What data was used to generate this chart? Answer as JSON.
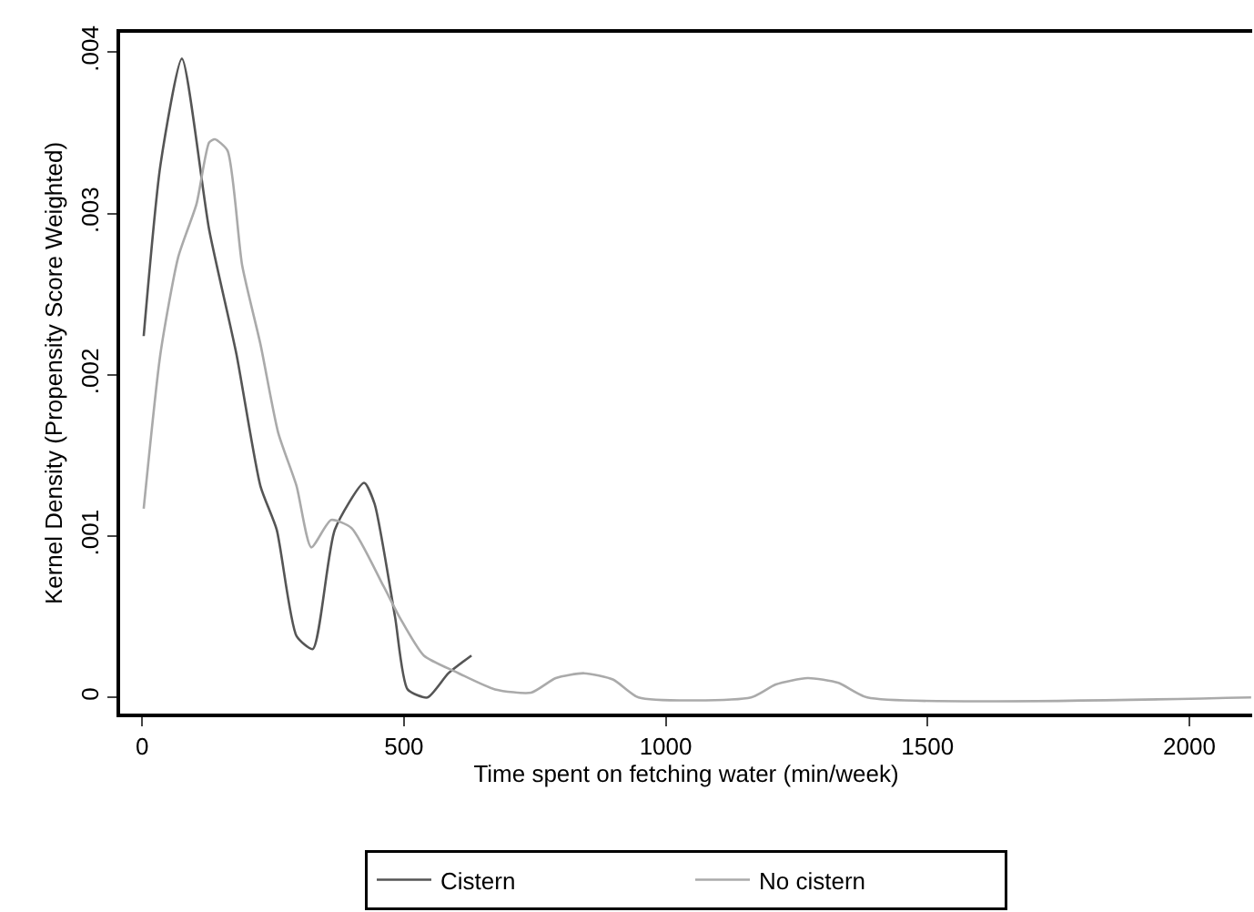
{
  "chart_data": {
    "type": "line",
    "xlabel": "Time spent on fetching water (min/week)",
    "ylabel": "Kernel Density (Propensity Score Weighted)",
    "xlim": [
      -42,
      2120
    ],
    "ylim": [
      -0.0001,
      0.00412
    ],
    "xticks": [
      0,
      500,
      1000,
      1500,
      2000
    ],
    "yticks": [
      0,
      {
        "value": 0.001,
        "label": ".001"
      },
      {
        "value": 0.002,
        "label": ".002"
      },
      {
        "value": 0.003,
        "label": ".003"
      },
      {
        "value": 0.004,
        "label": ".004"
      }
    ],
    "grid": false,
    "legend": "bottom",
    "marker": "none",
    "line_style": "solid",
    "series": [
      {
        "name": "Cistern",
        "color": "#555555",
        "x": [
          3,
          35,
          76,
          128,
          180,
          226,
          257,
          295,
          326,
          368,
          424,
          444,
          483,
          507,
          545,
          585,
          629
        ],
        "values": [
          0.00224,
          0.0033,
          0.00396,
          0.0029,
          0.00213,
          0.00131,
          0.00104,
          0.00038,
          0.0003,
          0.00104,
          0.00133,
          0.0012,
          0.0005,
          5e-05,
          0,
          0.00015,
          0.00026
        ]
      },
      {
        "name": "No cistern",
        "color": "#aaaaaa",
        "x": [
          3,
          35,
          69,
          104,
          128,
          139,
          163,
          191,
          226,
          260,
          295,
          323,
          361,
          400,
          461,
          493,
          538,
          598,
          674,
          743,
          790,
          844,
          900,
          948,
          1163,
          1210,
          1271,
          1330,
          1385,
          2118
        ],
        "values": [
          0.00117,
          0.00213,
          0.00273,
          0.00306,
          0.00344,
          0.00346,
          0.00339,
          0.00268,
          0.00219,
          0.00164,
          0.00131,
          0.00093,
          0.0011,
          0.00105,
          0.00069,
          0.00049,
          0.00026,
          0.00016,
          5e-05,
          3e-05,
          0.00012,
          0.00015,
          0.00011,
          0,
          0,
          8e-05,
          0.00012,
          9e-05,
          0,
          0
        ]
      }
    ]
  }
}
